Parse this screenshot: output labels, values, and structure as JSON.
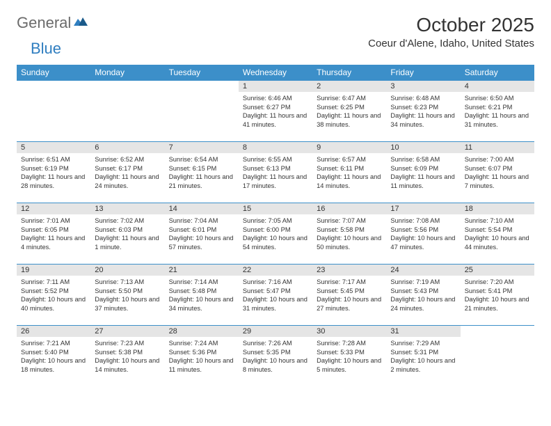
{
  "logo": {
    "text_general": "General",
    "text_blue": "Blue"
  },
  "header": {
    "month_title": "October 2025",
    "location": "Coeur d'Alene, Idaho, United States"
  },
  "colors": {
    "header_bg": "#3c8fc9",
    "header_text": "#ffffff",
    "daynum_bg": "#e5e5e5",
    "row_border": "#3c8fc9",
    "body_text": "#333333",
    "logo_gray": "#6b6b6b",
    "logo_blue": "#2f7ec0",
    "page_bg": "#ffffff"
  },
  "day_names": [
    "Sunday",
    "Monday",
    "Tuesday",
    "Wednesday",
    "Thursday",
    "Friday",
    "Saturday"
  ],
  "weeks": [
    [
      {
        "empty": true
      },
      {
        "empty": true
      },
      {
        "empty": true
      },
      {
        "num": "1",
        "sunrise": "Sunrise: 6:46 AM",
        "sunset": "Sunset: 6:27 PM",
        "daylight": "Daylight: 11 hours and 41 minutes."
      },
      {
        "num": "2",
        "sunrise": "Sunrise: 6:47 AM",
        "sunset": "Sunset: 6:25 PM",
        "daylight": "Daylight: 11 hours and 38 minutes."
      },
      {
        "num": "3",
        "sunrise": "Sunrise: 6:48 AM",
        "sunset": "Sunset: 6:23 PM",
        "daylight": "Daylight: 11 hours and 34 minutes."
      },
      {
        "num": "4",
        "sunrise": "Sunrise: 6:50 AM",
        "sunset": "Sunset: 6:21 PM",
        "daylight": "Daylight: 11 hours and 31 minutes."
      }
    ],
    [
      {
        "num": "5",
        "sunrise": "Sunrise: 6:51 AM",
        "sunset": "Sunset: 6:19 PM",
        "daylight": "Daylight: 11 hours and 28 minutes."
      },
      {
        "num": "6",
        "sunrise": "Sunrise: 6:52 AM",
        "sunset": "Sunset: 6:17 PM",
        "daylight": "Daylight: 11 hours and 24 minutes."
      },
      {
        "num": "7",
        "sunrise": "Sunrise: 6:54 AM",
        "sunset": "Sunset: 6:15 PM",
        "daylight": "Daylight: 11 hours and 21 minutes."
      },
      {
        "num": "8",
        "sunrise": "Sunrise: 6:55 AM",
        "sunset": "Sunset: 6:13 PM",
        "daylight": "Daylight: 11 hours and 17 minutes."
      },
      {
        "num": "9",
        "sunrise": "Sunrise: 6:57 AM",
        "sunset": "Sunset: 6:11 PM",
        "daylight": "Daylight: 11 hours and 14 minutes."
      },
      {
        "num": "10",
        "sunrise": "Sunrise: 6:58 AM",
        "sunset": "Sunset: 6:09 PM",
        "daylight": "Daylight: 11 hours and 11 minutes."
      },
      {
        "num": "11",
        "sunrise": "Sunrise: 7:00 AM",
        "sunset": "Sunset: 6:07 PM",
        "daylight": "Daylight: 11 hours and 7 minutes."
      }
    ],
    [
      {
        "num": "12",
        "sunrise": "Sunrise: 7:01 AM",
        "sunset": "Sunset: 6:05 PM",
        "daylight": "Daylight: 11 hours and 4 minutes."
      },
      {
        "num": "13",
        "sunrise": "Sunrise: 7:02 AM",
        "sunset": "Sunset: 6:03 PM",
        "daylight": "Daylight: 11 hours and 1 minute."
      },
      {
        "num": "14",
        "sunrise": "Sunrise: 7:04 AM",
        "sunset": "Sunset: 6:01 PM",
        "daylight": "Daylight: 10 hours and 57 minutes."
      },
      {
        "num": "15",
        "sunrise": "Sunrise: 7:05 AM",
        "sunset": "Sunset: 6:00 PM",
        "daylight": "Daylight: 10 hours and 54 minutes."
      },
      {
        "num": "16",
        "sunrise": "Sunrise: 7:07 AM",
        "sunset": "Sunset: 5:58 PM",
        "daylight": "Daylight: 10 hours and 50 minutes."
      },
      {
        "num": "17",
        "sunrise": "Sunrise: 7:08 AM",
        "sunset": "Sunset: 5:56 PM",
        "daylight": "Daylight: 10 hours and 47 minutes."
      },
      {
        "num": "18",
        "sunrise": "Sunrise: 7:10 AM",
        "sunset": "Sunset: 5:54 PM",
        "daylight": "Daylight: 10 hours and 44 minutes."
      }
    ],
    [
      {
        "num": "19",
        "sunrise": "Sunrise: 7:11 AM",
        "sunset": "Sunset: 5:52 PM",
        "daylight": "Daylight: 10 hours and 40 minutes."
      },
      {
        "num": "20",
        "sunrise": "Sunrise: 7:13 AM",
        "sunset": "Sunset: 5:50 PM",
        "daylight": "Daylight: 10 hours and 37 minutes."
      },
      {
        "num": "21",
        "sunrise": "Sunrise: 7:14 AM",
        "sunset": "Sunset: 5:48 PM",
        "daylight": "Daylight: 10 hours and 34 minutes."
      },
      {
        "num": "22",
        "sunrise": "Sunrise: 7:16 AM",
        "sunset": "Sunset: 5:47 PM",
        "daylight": "Daylight: 10 hours and 31 minutes."
      },
      {
        "num": "23",
        "sunrise": "Sunrise: 7:17 AM",
        "sunset": "Sunset: 5:45 PM",
        "daylight": "Daylight: 10 hours and 27 minutes."
      },
      {
        "num": "24",
        "sunrise": "Sunrise: 7:19 AM",
        "sunset": "Sunset: 5:43 PM",
        "daylight": "Daylight: 10 hours and 24 minutes."
      },
      {
        "num": "25",
        "sunrise": "Sunrise: 7:20 AM",
        "sunset": "Sunset: 5:41 PM",
        "daylight": "Daylight: 10 hours and 21 minutes."
      }
    ],
    [
      {
        "num": "26",
        "sunrise": "Sunrise: 7:21 AM",
        "sunset": "Sunset: 5:40 PM",
        "daylight": "Daylight: 10 hours and 18 minutes."
      },
      {
        "num": "27",
        "sunrise": "Sunrise: 7:23 AM",
        "sunset": "Sunset: 5:38 PM",
        "daylight": "Daylight: 10 hours and 14 minutes."
      },
      {
        "num": "28",
        "sunrise": "Sunrise: 7:24 AM",
        "sunset": "Sunset: 5:36 PM",
        "daylight": "Daylight: 10 hours and 11 minutes."
      },
      {
        "num": "29",
        "sunrise": "Sunrise: 7:26 AM",
        "sunset": "Sunset: 5:35 PM",
        "daylight": "Daylight: 10 hours and 8 minutes."
      },
      {
        "num": "30",
        "sunrise": "Sunrise: 7:28 AM",
        "sunset": "Sunset: 5:33 PM",
        "daylight": "Daylight: 10 hours and 5 minutes."
      },
      {
        "num": "31",
        "sunrise": "Sunrise: 7:29 AM",
        "sunset": "Sunset: 5:31 PM",
        "daylight": "Daylight: 10 hours and 2 minutes."
      },
      {
        "empty": true
      }
    ]
  ]
}
